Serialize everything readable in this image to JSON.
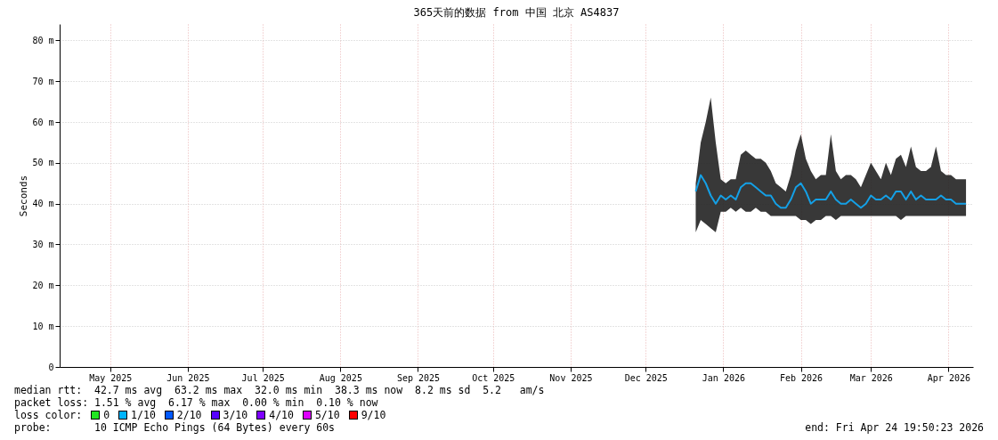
{
  "chart_data": {
    "type": "line",
    "title": "365天前的数据 from 中国 北京 AS4837",
    "ylabel": "Seconds",
    "x": [
      "2026-01-04",
      "2026-01-06",
      "2026-01-08",
      "2026-01-10",
      "2026-01-12",
      "2026-01-14",
      "2026-01-16",
      "2026-01-18",
      "2026-01-20",
      "2026-01-22",
      "2026-01-24",
      "2026-01-26",
      "2026-01-28",
      "2026-01-30",
      "2026-02-01",
      "2026-02-03",
      "2026-02-05",
      "2026-02-07",
      "2026-02-09",
      "2026-02-11",
      "2026-02-13",
      "2026-02-15",
      "2026-02-17",
      "2026-02-19",
      "2026-02-21",
      "2026-02-23",
      "2026-02-25",
      "2026-02-27",
      "2026-03-01",
      "2026-03-03",
      "2026-03-05",
      "2026-03-07",
      "2026-03-09",
      "2026-03-11",
      "2026-03-13",
      "2026-03-15",
      "2026-03-17",
      "2026-03-19",
      "2026-03-21",
      "2026-03-23",
      "2026-03-25",
      "2026-03-27",
      "2026-03-29",
      "2026-03-31",
      "2026-04-02",
      "2026-04-04",
      "2026-04-06",
      "2026-04-08",
      "2026-04-10",
      "2026-04-12",
      "2026-04-14",
      "2026-04-16",
      "2026-04-18",
      "2026-04-20",
      "2026-04-22"
    ],
    "series": [
      {
        "color": "#14a0e6",
        "values": [
          43,
          47,
          45,
          42,
          40,
          42,
          41,
          42,
          41,
          44,
          45,
          45,
          44,
          43,
          42,
          42,
          40,
          39,
          39,
          41,
          44,
          45,
          43,
          40,
          41,
          41,
          41,
          43,
          41,
          40,
          40,
          41,
          40,
          39,
          40,
          42,
          41,
          41,
          42,
          41,
          43,
          43,
          41,
          43,
          41,
          42,
          41,
          41,
          41,
          42,
          41,
          41,
          40,
          40,
          40
        ],
        "lower": [
          33,
          36,
          35,
          34,
          33,
          38,
          38,
          39,
          38,
          39,
          38,
          38,
          39,
          38,
          38,
          37,
          37,
          37,
          37,
          37,
          37,
          36,
          36,
          35,
          36,
          36,
          37,
          37,
          36,
          37,
          37,
          37,
          37,
          37,
          37,
          37,
          37,
          37,
          37,
          37,
          37,
          36,
          37,
          37,
          37,
          37,
          37,
          37,
          37,
          37,
          37,
          37,
          37,
          37,
          37
        ],
        "upper": [
          45,
          55,
          60,
          66,
          55,
          46,
          45,
          46,
          46,
          52,
          53,
          52,
          51,
          51,
          50,
          48,
          45,
          44,
          43,
          47,
          53,
          57,
          51,
          48,
          46,
          47,
          47,
          57,
          48,
          46,
          47,
          47,
          46,
          44,
          47,
          50,
          48,
          46,
          50,
          47,
          51,
          52,
          49,
          54,
          49,
          48,
          48,
          49,
          54,
          48,
          47,
          47,
          46,
          46,
          46
        ]
      }
    ],
    "xlim": [
      "2025-04-24T19:50",
      "2026-04-24T19:50"
    ],
    "xticks": [
      {
        "value": "2025-05-15",
        "label": "May 2025"
      },
      {
        "value": "2025-06-15",
        "label": "Jun 2025"
      },
      {
        "value": "2025-07-15",
        "label": "Jul 2025"
      },
      {
        "value": "2025-08-15",
        "label": "Aug 2025"
      },
      {
        "value": "2025-09-15",
        "label": "Sep 2025"
      },
      {
        "value": "2025-10-15",
        "label": "Oct 2025"
      },
      {
        "value": "2025-11-15",
        "label": "Nov 2025"
      },
      {
        "value": "2025-12-15",
        "label": "Dec 2025"
      },
      {
        "value": "2026-01-15",
        "label": "Jan 2026"
      },
      {
        "value": "2026-02-15",
        "label": "Feb 2026"
      },
      {
        "value": "2026-03-15",
        "label": "Mar 2026"
      },
      {
        "value": "2026-04-15",
        "label": "Apr 2026"
      }
    ],
    "ylim": [
      0,
      84
    ],
    "yticks": [
      0,
      {
        "value": 10,
        "label": "10 m"
      },
      {
        "value": 20,
        "label": "20 m"
      },
      {
        "value": 30,
        "label": "30 m"
      },
      {
        "value": 40,
        "label": "40 m"
      },
      {
        "value": 50,
        "label": "50 m"
      },
      {
        "value": 60,
        "label": "60 m"
      },
      {
        "value": 70,
        "label": "70 m"
      },
      {
        "value": 80,
        "label": "80 m"
      }
    ],
    "grid": true,
    "marker": "none",
    "annotations": [
      "median rtt:  42.7 ms avg  63.2 ms max  32.0 ms min  38.3 ms now  8.2 ms sd  5.2   am/s",
      "packet loss: 1.51 % avg  6.17 % max  0.00 % min  0.10 % now",
      "loss color:",
      "0",
      "1/10",
      "2/10",
      "3/10",
      "4/10",
      "5/10",
      "9/10",
      "probe:       10 ICMP Echo Pings (64 Bytes) every 60s",
      "end: Fri Apr 24 19:50:23 2026"
    ]
  }
}
